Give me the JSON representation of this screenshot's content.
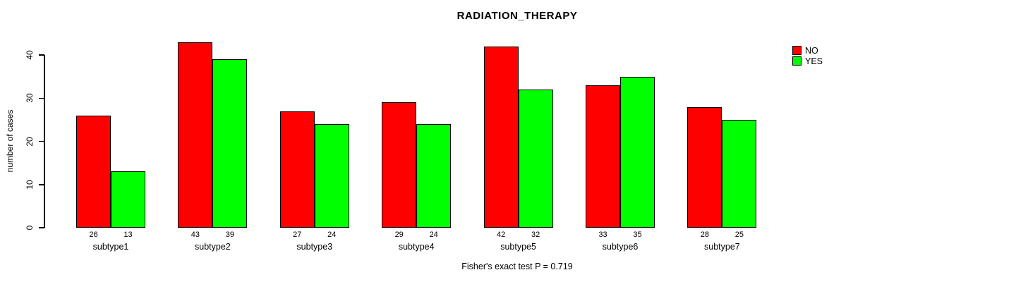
{
  "title": "RADIATION_THERAPY",
  "footer": "Fisher's exact test P = 0.719",
  "legend": [
    {
      "label": "NO",
      "color": "#FF0000"
    },
    {
      "label": "YES",
      "color": "#00FF00"
    }
  ],
  "chart_data": {
    "type": "bar",
    "title": "RADIATION_THERAPY",
    "xlabel": "",
    "ylabel": "number of cases",
    "categories": [
      "subtype1",
      "subtype2",
      "subtype3",
      "subtype4",
      "subtype5",
      "subtype6",
      "subtype7"
    ],
    "series": [
      {
        "name": "NO",
        "color": "#FF0000",
        "values": [
          26,
          43,
          27,
          29,
          42,
          33,
          28
        ]
      },
      {
        "name": "YES",
        "color": "#00FF00",
        "values": [
          13,
          39,
          24,
          24,
          32,
          35,
          25
        ]
      }
    ],
    "yticks": [
      0,
      10,
      20,
      30,
      40
    ],
    "ylim": [
      0,
      40
    ],
    "grid": false,
    "bar_value_labels": true,
    "legend_position": "topright",
    "annotation": "Fisher's exact test P = 0.719"
  }
}
